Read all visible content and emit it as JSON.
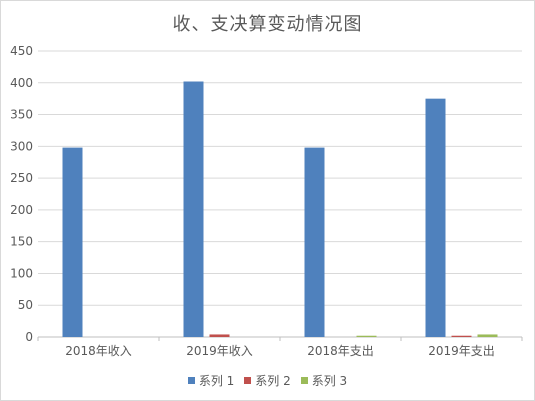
{
  "chart_data": {
    "type": "bar",
    "title": "收、支决算变动情况图",
    "categories": [
      "2018年收入",
      "2019年收入",
      "2018年支出",
      "2019年支出"
    ],
    "series": [
      {
        "name": "系列 1",
        "color": "#4f81bd",
        "values": [
          298,
          402,
          298,
          375
        ]
      },
      {
        "name": "系列 2",
        "color": "#c0504d",
        "values": [
          0,
          4,
          0,
          2
        ]
      },
      {
        "name": "系列 3",
        "color": "#9bbb59",
        "values": [
          0,
          0,
          2,
          4
        ]
      }
    ],
    "ylim": [
      0,
      450
    ],
    "yticks": [
      0,
      50,
      100,
      150,
      200,
      250,
      300,
      350,
      400,
      450
    ],
    "grid": true,
    "legend_position": "bottom"
  }
}
